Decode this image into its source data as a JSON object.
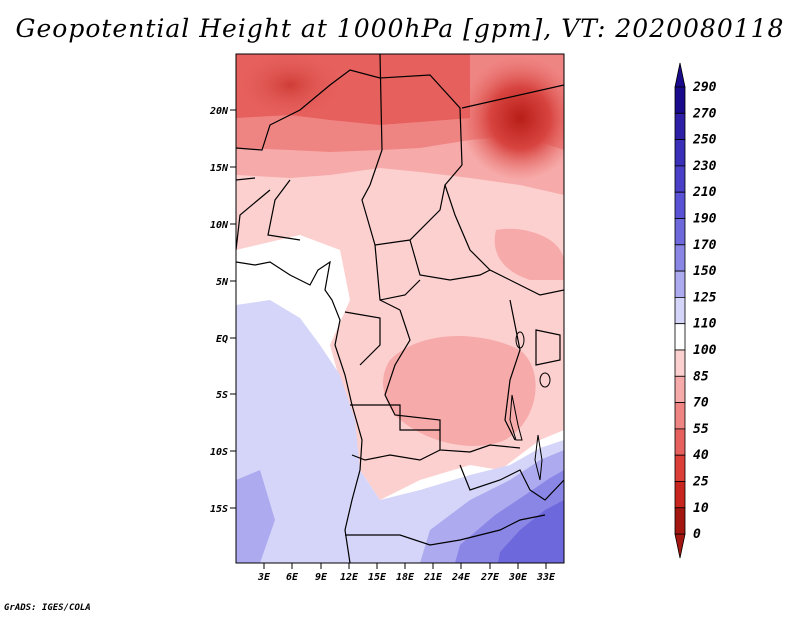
{
  "title": "Geopotential Height at 1000hPa [gpm], VT: 2020080118",
  "credit": "GrADS: IGES/COLA",
  "map": {
    "lat_labels": [
      "20N",
      "15N",
      "10N",
      "5N",
      "EQ",
      "5S",
      "10S",
      "15S"
    ],
    "lon_labels": [
      "3E",
      "6E",
      "9E",
      "12E",
      "15E",
      "18E",
      "21E",
      "24E",
      "27E",
      "30E",
      "33E"
    ]
  },
  "colorbar": {
    "levels": [
      "290",
      "270",
      "250",
      "230",
      "210",
      "190",
      "170",
      "150",
      "125",
      "110",
      "100",
      "85",
      "70",
      "55",
      "40",
      "25",
      "10",
      "0"
    ],
    "colors": [
      "#1a0a8c",
      "#2d1fa6",
      "#3a2fb8",
      "#4a40c8",
      "#5a52d4",
      "#6e68dd",
      "#8a86e6",
      "#aeaaf0",
      "#d4d5f8",
      "#ffffff",
      "#fdd0d0",
      "#f6aaa9",
      "#ef8583",
      "#e6605d",
      "#dc3e38",
      "#c9251f",
      "#a41711"
    ]
  }
}
